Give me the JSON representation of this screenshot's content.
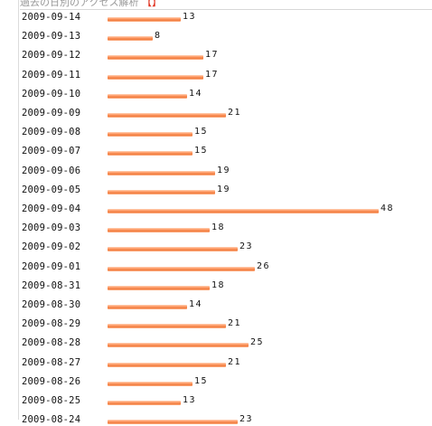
{
  "header": {
    "text": "過去の日別のアクセス解析",
    "accent": "【】"
  },
  "colors": {
    "bar": "#f07a3c",
    "bar_light": "#ffd3b8"
  },
  "chart_data": {
    "type": "bar",
    "orientation": "horizontal",
    "categories": [
      "2009-09-14",
      "2009-09-13",
      "2009-09-12",
      "2009-09-11",
      "2009-09-10",
      "2009-09-09",
      "2009-09-08",
      "2009-09-07",
      "2009-09-06",
      "2009-09-05",
      "2009-09-04",
      "2009-09-03",
      "2009-09-02",
      "2009-09-01",
      "2009-08-31",
      "2009-08-30",
      "2009-08-29",
      "2009-08-28",
      "2009-08-27",
      "2009-08-26",
      "2009-08-25",
      "2009-08-24"
    ],
    "values": [
      13,
      8,
      17,
      17,
      14,
      21,
      15,
      15,
      19,
      19,
      48,
      18,
      23,
      26,
      18,
      14,
      21,
      25,
      21,
      15,
      13,
      23
    ],
    "xlim": [
      0,
      48
    ]
  }
}
